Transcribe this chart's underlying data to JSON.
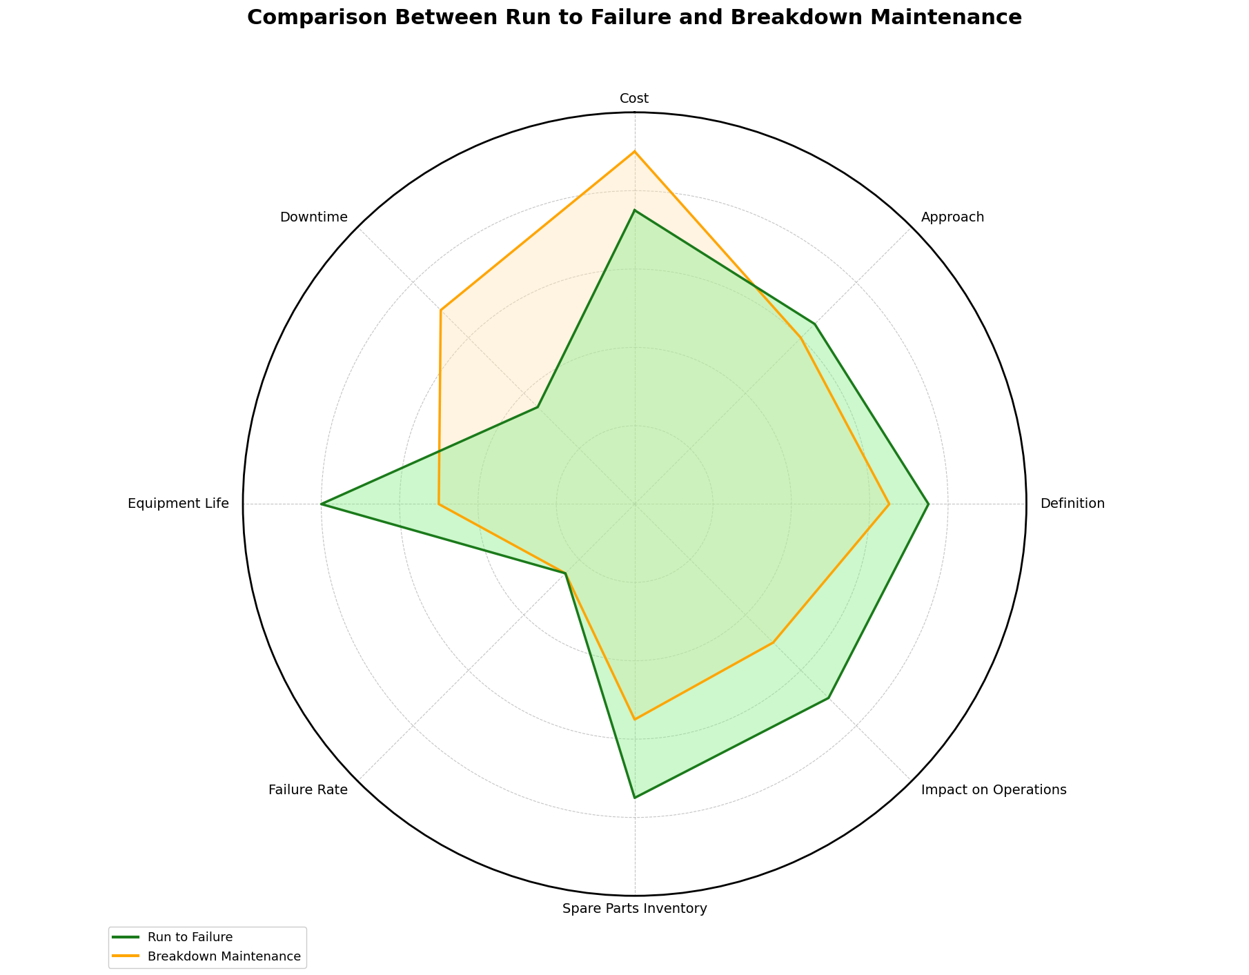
{
  "title": "Comparison Between Run to Failure and Breakdown Maintenance",
  "categories": [
    "Cost",
    "Approach",
    "Definition",
    "Impact on Operations",
    "Spare Parts Inventory",
    "Failure Rate",
    "Equipment Life",
    "Downtime"
  ],
  "run_to_failure": [
    7.5,
    6.5,
    7.5,
    7.0,
    7.5,
    2.5,
    8.0,
    3.5
  ],
  "breakdown_maintenance": [
    9.0,
    6.0,
    6.5,
    5.0,
    5.5,
    2.5,
    5.0,
    7.0
  ],
  "rtf_color": "#1a7a1a",
  "rtf_fill": "#90ee90",
  "bm_color": "#FFA500",
  "bm_fill": "#FFE5B4",
  "rtf_alpha": 0.45,
  "bm_alpha": 0.4,
  "rtf_label": "Run to Failure",
  "bm_label": "Breakdown Maintenance",
  "title_fontsize": 22,
  "label_fontsize": 14,
  "legend_fontsize": 13,
  "grid_color": "#aaaaaa",
  "line_width": 2.5,
  "max_value": 10
}
